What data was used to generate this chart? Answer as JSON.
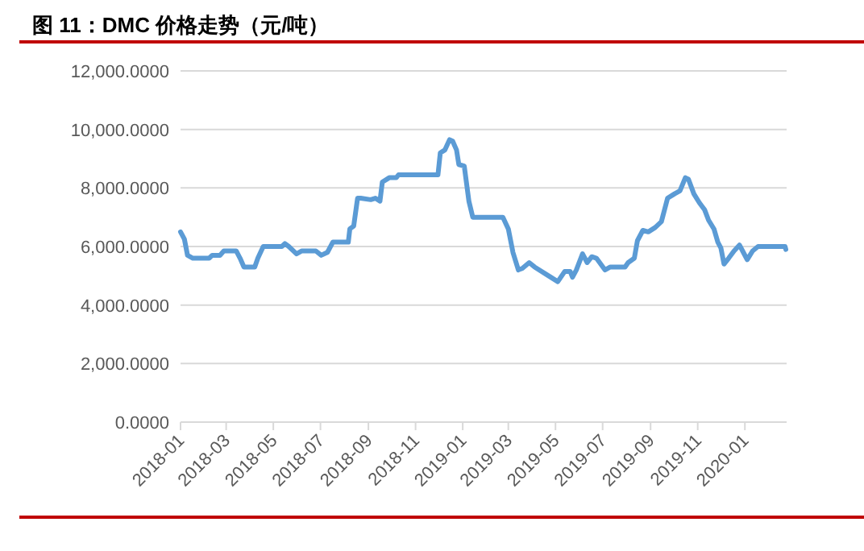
{
  "chart_data": {
    "type": "line",
    "title": "图 11：DMC 价格走势（元/吨）",
    "x": [
      "2018-01-01",
      "2018-01-06",
      "2018-01-10",
      "2018-01-17",
      "2018-02-07",
      "2018-02-11",
      "2018-02-21",
      "2018-02-26",
      "2018-03-14",
      "2018-03-19",
      "2018-03-24",
      "2018-04-07",
      "2018-04-11",
      "2018-04-18",
      "2018-05-12",
      "2018-05-16",
      "2018-05-21",
      "2018-05-31",
      "2018-06-07",
      "2018-06-25",
      "2018-07-02",
      "2018-07-10",
      "2018-07-17",
      "2018-08-06",
      "2018-08-08",
      "2018-08-13",
      "2018-08-18",
      "2018-08-22",
      "2018-09-04",
      "2018-09-10",
      "2018-09-16",
      "2018-09-19",
      "2018-09-28",
      "2018-10-07",
      "2018-10-10",
      "2018-11-30",
      "2018-12-03",
      "2018-12-09",
      "2018-12-15",
      "2018-12-19",
      "2018-12-24",
      "2018-12-27",
      "2019-01-03",
      "2019-01-09",
      "2019-01-14",
      "2019-02-22",
      "2019-03-01",
      "2019-03-07",
      "2019-03-14",
      "2019-03-19",
      "2019-03-28",
      "2019-04-04",
      "2019-04-22",
      "2019-05-04",
      "2019-05-13",
      "2019-05-20",
      "2019-05-23",
      "2019-05-28",
      "2019-06-05",
      "2019-06-11",
      "2019-06-17",
      "2019-06-23",
      "2019-07-04",
      "2019-07-11",
      "2019-07-30",
      "2019-08-03",
      "2019-08-11",
      "2019-08-15",
      "2019-08-22",
      "2019-08-29",
      "2019-09-07",
      "2019-09-15",
      "2019-09-23",
      "2019-10-02",
      "2019-10-09",
      "2019-10-16",
      "2019-10-20",
      "2019-10-27",
      "2019-11-03",
      "2019-11-10",
      "2019-11-15",
      "2019-11-22",
      "2019-11-27",
      "2019-12-01",
      "2019-12-05",
      "2019-12-11",
      "2019-12-18",
      "2019-12-25",
      "2019-12-30",
      "2020-01-04",
      "2020-01-11",
      "2020-01-18",
      "2020-02-22",
      "2020-02-23"
    ],
    "series": [
      {
        "color": "#5b9bd5",
        "values": [
          6500,
          6250,
          5700,
          5600,
          5600,
          5700,
          5700,
          5850,
          5850,
          5600,
          5300,
          5300,
          5600,
          6000,
          6000,
          6100,
          6000,
          5750,
          5850,
          5850,
          5700,
          5800,
          6150,
          6150,
          6600,
          6700,
          7650,
          7650,
          7600,
          7650,
          7550,
          8200,
          8350,
          8350,
          8450,
          8450,
          9200,
          9300,
          9650,
          9600,
          9300,
          8800,
          8750,
          7550,
          7000,
          7000,
          6600,
          5800,
          5200,
          5250,
          5450,
          5300,
          5000,
          4800,
          5150,
          5150,
          4950,
          5200,
          5750,
          5450,
          5650,
          5600,
          5200,
          5300,
          5300,
          5450,
          5600,
          6200,
          6550,
          6500,
          6650,
          6850,
          7650,
          7800,
          7900,
          8350,
          8300,
          7800,
          7500,
          7250,
          6900,
          6600,
          6150,
          5950,
          5400,
          5600,
          5850,
          6050,
          5800,
          5550,
          5850,
          6000,
          6000,
          5900
        ]
      }
    ],
    "xlim": [
      "2018-01-01",
      "2020-02-24"
    ],
    "xticks": [
      "2018-01",
      "2018-03",
      "2018-05",
      "2018-07",
      "2018-09",
      "2018-11",
      "2019-01",
      "2019-03",
      "2019-05",
      "2019-07",
      "2019-09",
      "2019-11",
      "2020-01"
    ],
    "ylim": [
      0,
      12000
    ],
    "yticks": [
      {
        "value": 0,
        "label": "0.0000"
      },
      {
        "value": 2000,
        "label": "2,000.0000"
      },
      {
        "value": 4000,
        "label": "4,000.0000"
      },
      {
        "value": 6000,
        "label": "6,000.0000"
      },
      {
        "value": 8000,
        "label": "8,000.0000"
      },
      {
        "value": 10000,
        "label": "10,000.0000"
      },
      {
        "value": 12000,
        "label": "12,000.0000"
      }
    ],
    "grid": "y",
    "marker": "none",
    "line_style": "solid"
  }
}
